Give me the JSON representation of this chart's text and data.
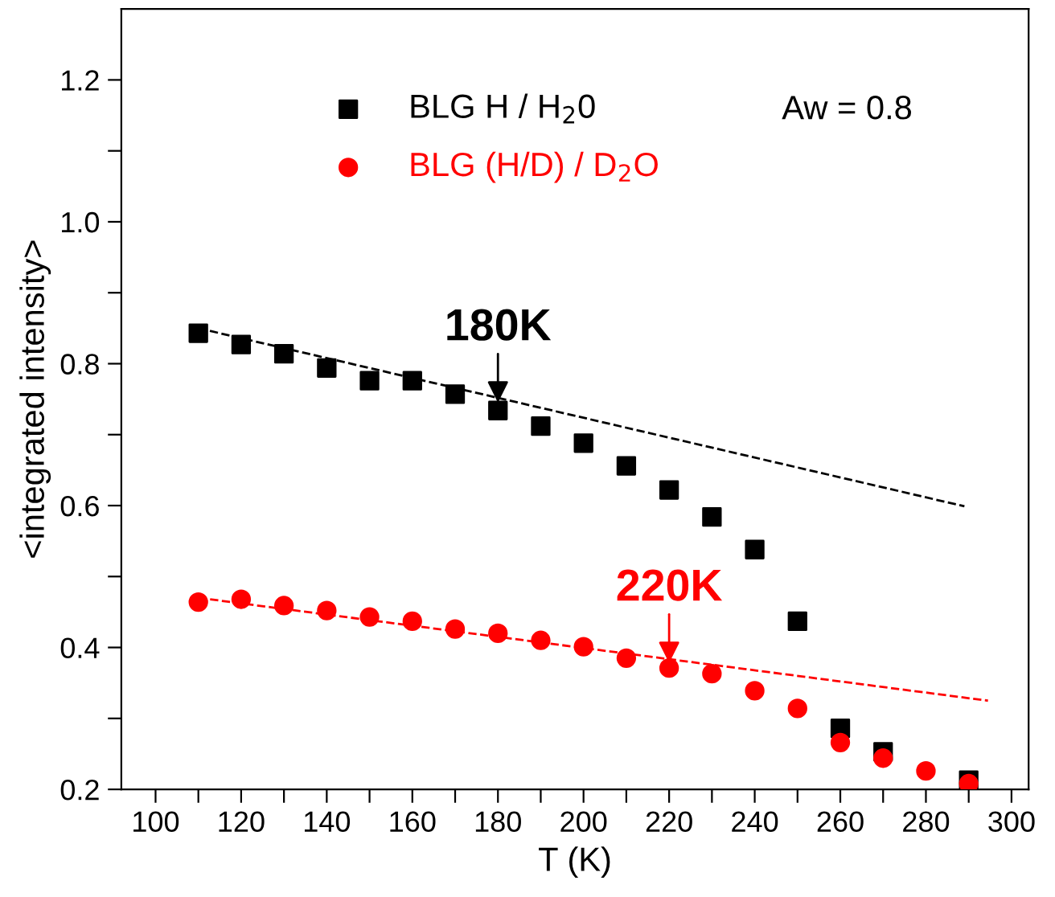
{
  "chart_data": {
    "type": "scatter",
    "xlabel": "T (K)",
    "ylabel": "<integrated intensity>",
    "xlim": [
      92,
      304
    ],
    "ylim": [
      0.2,
      1.3
    ],
    "xticks": [
      100,
      120,
      140,
      160,
      180,
      200,
      220,
      240,
      260,
      280,
      300,
      {
        "value": 110,
        "label": null
      },
      {
        "value": 130,
        "label": null
      },
      {
        "value": 150,
        "label": null
      },
      {
        "value": 170,
        "label": null
      },
      {
        "value": 190,
        "label": null
      },
      {
        "value": 210,
        "label": null
      },
      {
        "value": 230,
        "label": null
      },
      {
        "value": 250,
        "label": null
      },
      {
        "value": 270,
        "label": null
      },
      {
        "value": 290,
        "label": null
      }
    ],
    "yticks": [
      0.2,
      0.4,
      0.6,
      0.8,
      {
        "value": 1.0,
        "label": "1.0"
      },
      1.2,
      {
        "value": 0.3,
        "label": null
      },
      {
        "value": 0.5,
        "label": null
      },
      {
        "value": 0.7,
        "label": null
      },
      {
        "value": 0.9,
        "label": null
      },
      {
        "value": 1.1,
        "label": null
      }
    ],
    "x": [
      110,
      120,
      130,
      140,
      150,
      160,
      170,
      180,
      190,
      200,
      210,
      220,
      230,
      240,
      250,
      260,
      270,
      290
    ],
    "series": [
      {
        "name": "BLG H / H$_{2}$0",
        "color": "#000000",
        "marker": "square",
        "values": [
          0.843,
          0.827,
          0.814,
          0.794,
          0.776,
          0.776,
          0.757,
          0.734,
          0.712,
          0.688,
          0.656,
          0.622,
          0.584,
          0.538,
          0.437,
          0.286,
          0.253,
          0.213
        ]
      },
      {
        "name": "BLG (H/D) / D$_{2}$O",
        "color": "#ff0000",
        "marker": "circle",
        "x": [
          110,
          120,
          130,
          140,
          150,
          160,
          170,
          180,
          190,
          200,
          210,
          220,
          230,
          240,
          250,
          260,
          270,
          280,
          290
        ],
        "values": [
          0.464,
          0.468,
          0.459,
          0.452,
          0.443,
          0.437,
          0.426,
          0.42,
          0.41,
          0.401,
          0.385,
          0.371,
          0.363,
          0.339,
          0.314,
          0.266,
          0.244,
          0.226,
          0.208
        ]
      },
      {
        "type": "line",
        "color": "#000000",
        "line_style": "dashed",
        "x": [
          110,
          289
        ],
        "values": [
          0.85,
          0.599
        ]
      },
      {
        "type": "line",
        "color": "#ff0000",
        "line_style": "dashed",
        "x": [
          110,
          294.5
        ],
        "values": [
          0.47,
          0.325
        ]
      }
    ],
    "annotations": [
      {
        "text": "180K",
        "x": 180,
        "y": 0.745
      },
      {
        "text": "220K",
        "x": 220,
        "y": 0.378
      },
      "Aw = 0.8"
    ],
    "legend": "top left",
    "grid": false
  }
}
